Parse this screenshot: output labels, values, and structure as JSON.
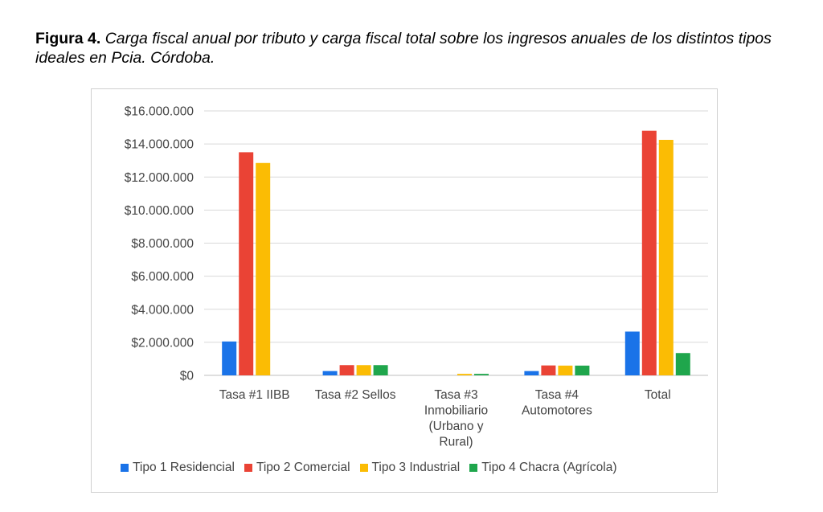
{
  "caption": {
    "label": "Figura 4.",
    "text": "Carga fiscal anual por tributo y carga fiscal total sobre los ingresos anuales de los distintos tipos ideales en Pcia. Córdoba."
  },
  "chart_data": {
    "type": "bar",
    "title": "",
    "xlabel": "",
    "ylabel": "",
    "ylim": [
      0,
      16000000
    ],
    "yticks": [
      "$0",
      "$2.000.000",
      "$4.000.000",
      "$6.000.000",
      "$8.000.000",
      "$10.000.000",
      "$12.000.000",
      "$14.000.000",
      "$16.000.000"
    ],
    "grid": true,
    "legend_position": "bottom",
    "categories": [
      [
        "Tasa #1 IIBB"
      ],
      [
        "Tasa #2 Sellos"
      ],
      [
        "Tasa #3",
        "Inmobiliario",
        "(Urbano y",
        "Rural)"
      ],
      [
        "Tasa #4",
        "Automotores"
      ],
      [
        "Total"
      ]
    ],
    "series": [
      {
        "name": "Tipo 1 Residencial",
        "color": "#1a73e8",
        "values": [
          2050000,
          260000,
          0,
          260000,
          2650000
        ]
      },
      {
        "name": "Tipo 2 Comercial",
        "color": "#ea4335",
        "values": [
          13500000,
          620000,
          0,
          600000,
          14800000
        ]
      },
      {
        "name": "Tipo 3 Industrial",
        "color": "#fbbc04",
        "values": [
          12850000,
          620000,
          90000,
          590000,
          14250000
        ]
      },
      {
        "name": "Tipo 4 Chacra (Agrícola)",
        "color": "#1fa64c",
        "values": [
          0,
          620000,
          90000,
          590000,
          1350000
        ]
      }
    ]
  }
}
